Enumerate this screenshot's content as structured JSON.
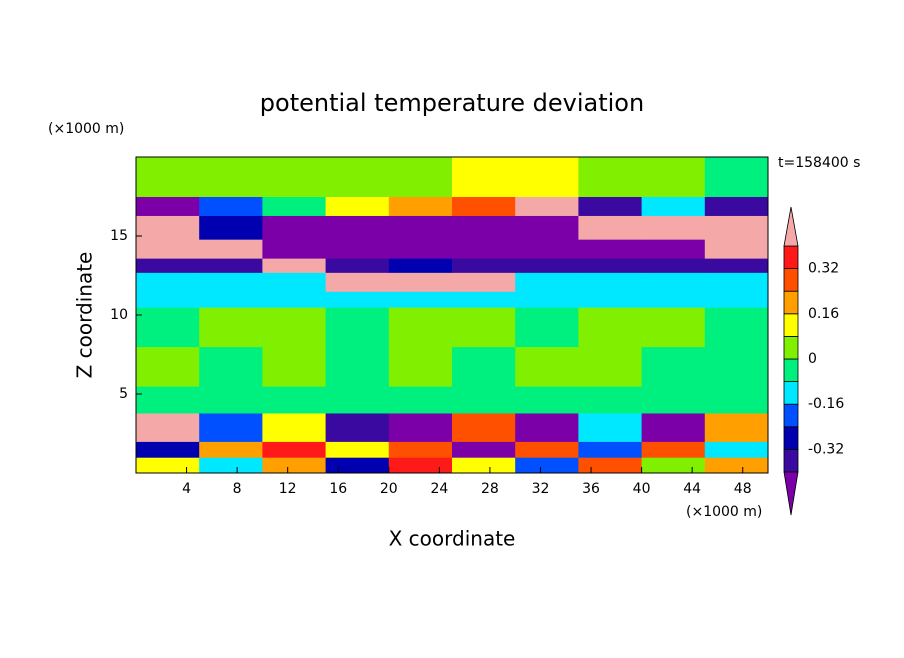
{
  "chart_data": {
    "type": "contour",
    "title": "potential temperature deviation",
    "x_label": "X coordinate",
    "y_label": "Z coordinate",
    "x_unit": "(×1000 m)",
    "y_unit": "(×1000 m)",
    "time_label": "t=158400 s",
    "xlim": [
      0,
      50
    ],
    "ylim": [
      0,
      20
    ],
    "xticks": [
      4,
      8,
      12,
      16,
      20,
      24,
      28,
      32,
      36,
      40,
      44,
      48
    ],
    "yticks": [
      5,
      10,
      15
    ],
    "x_bins": [
      0,
      5,
      10,
      15,
      20,
      25,
      30,
      35,
      40,
      45,
      50
    ],
    "y_bins": [
      0,
      1,
      2,
      3.8,
      5.5,
      8,
      10.5,
      11.5,
      12.7,
      13.6,
      14.8,
      16.3,
      17.5,
      20
    ],
    "values": [
      [
        0.1,
        -0.1,
        0.2,
        -0.3,
        0.35,
        0.1,
        -0.2,
        0.3,
        0.05,
        0.2
      ],
      [
        -0.3,
        0.2,
        0.35,
        0.1,
        0.3,
        -0.45,
        0.25,
        -0.2,
        0.3,
        -0.15
      ],
      [
        0.45,
        -0.2,
        0.1,
        -0.35,
        -0.45,
        0.3,
        -0.45,
        -0.1,
        -0.45,
        0.2
      ],
      [
        -0.05,
        -0.03,
        -0.04,
        -0.05,
        -0.05,
        -0.03,
        -0.05,
        -0.04,
        -0.03,
        -0.05
      ],
      [
        0.02,
        -0.03,
        0.04,
        -0.02,
        0.03,
        -0.04,
        0.02,
        0.04,
        -0.03,
        -0.02
      ],
      [
        -0.04,
        0.02,
        0.05,
        -0.03,
        0.03,
        0.02,
        -0.02,
        0.03,
        0.02,
        -0.03
      ],
      [
        -0.1,
        -0.12,
        -0.1,
        -0.1,
        -0.12,
        -0.1,
        -0.12,
        -0.1,
        -0.12,
        -0.1
      ],
      [
        -0.12,
        -0.12,
        -0.1,
        0.45,
        0.45,
        0.45,
        -0.1,
        -0.12,
        -0.1,
        -0.12
      ],
      [
        -0.35,
        -0.35,
        0.45,
        -0.35,
        -0.3,
        -0.35,
        -0.35,
        -0.35,
        -0.35,
        -0.35
      ],
      [
        0.45,
        0.45,
        -0.45,
        -0.45,
        -0.45,
        -0.45,
        -0.45,
        -0.45,
        -0.45,
        0.45
      ],
      [
        0.45,
        -0.3,
        -0.45,
        -0.45,
        -0.45,
        -0.45,
        -0.45,
        0.45,
        0.45,
        0.45
      ],
      [
        -0.45,
        -0.2,
        -0.05,
        0.1,
        0.2,
        0.3,
        0.45,
        -0.35,
        -0.1,
        -0.38
      ],
      [
        0.02,
        0.04,
        0.04,
        0.04,
        0.04,
        0.1,
        0.12,
        0.04,
        0.02,
        -0.05
      ]
    ],
    "levels": [
      -0.4,
      -0.32,
      -0.24,
      -0.16,
      -0.08,
      0,
      0.08,
      0.16,
      0.24,
      0.32,
      0.4
    ],
    "level_colors": [
      "#7b00a8",
      "#3a0aa0",
      "#0000b0",
      "#0050ff",
      "#00e8ff",
      "#00f080",
      "#80f000",
      "#ffff00",
      "#ffa000",
      "#ff5000",
      "#ff1a1a",
      "#f4a8a8"
    ],
    "colorbar_ticks": [
      -0.32,
      -0.16,
      0,
      0.16,
      0.32
    ]
  }
}
